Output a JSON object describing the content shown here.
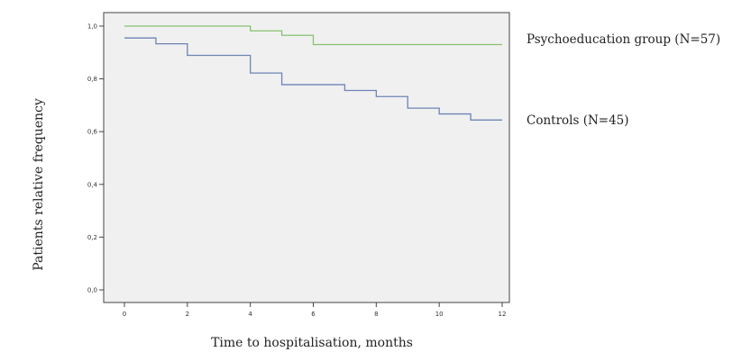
{
  "chart_data": {
    "type": "line",
    "xlabel": "Time to hospitalisation, months",
    "ylabel": "Patients relative frequency",
    "xlim": [
      0,
      12
    ],
    "ylim": [
      0,
      1
    ],
    "x_ticks": [
      "0",
      "2",
      "4",
      "6",
      "8",
      "10",
      "12"
    ],
    "y_ticks": [
      "0,0",
      "0,2",
      "0,4",
      "0,6",
      "0,8",
      "1,0"
    ],
    "grid": false,
    "step": true,
    "series": [
      {
        "name": "Psychoeducation group (N=57)",
        "color": "#86c271",
        "x": [
          0,
          4,
          5,
          6,
          12
        ],
        "y": [
          1.0,
          0.982,
          0.965,
          0.93,
          0.93
        ]
      },
      {
        "name": "Controls (N=45)",
        "color": "#6d84b6",
        "x": [
          0,
          1,
          2,
          4,
          5,
          7,
          8,
          9,
          10,
          11,
          12
        ],
        "y": [
          0.955,
          0.933,
          0.889,
          0.822,
          0.778,
          0.756,
          0.733,
          0.689,
          0.667,
          0.644,
          0.644
        ]
      }
    ]
  },
  "colors": {
    "plot_background": "#f0f0f0",
    "frame": "#444444"
  }
}
